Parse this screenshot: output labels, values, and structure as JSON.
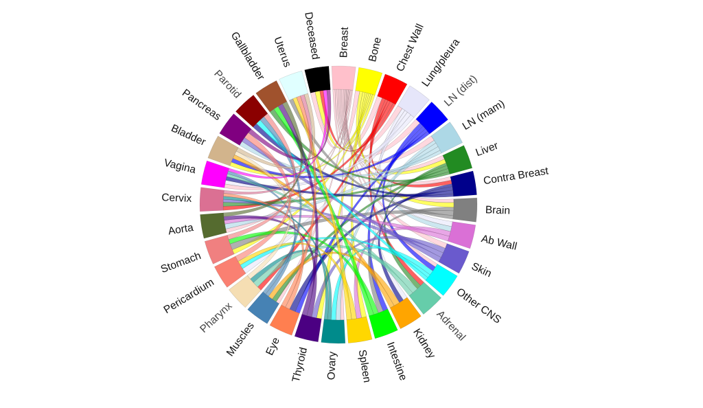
{
  "diagram": {
    "type": "chord",
    "segments": [
      {
        "label": "Breast",
        "color": "#ffc0cb"
      },
      {
        "label": "Bone",
        "color": "#ffff00"
      },
      {
        "label": "Chest Wall",
        "color": "#ff0000"
      },
      {
        "label": "Lung/pleura",
        "color": "#e6e6fa"
      },
      {
        "label": "LN (dist)",
        "color": "#0000ff",
        "style": "light"
      },
      {
        "label": "LN (mam)",
        "color": "#add8e6"
      },
      {
        "label": "Liver",
        "color": "#228b22"
      },
      {
        "label": "Contra Breast",
        "color": "#00008b"
      },
      {
        "label": "Brain",
        "color": "#808080"
      },
      {
        "label": "Ab Wall",
        "color": "#da70d6"
      },
      {
        "label": "Skin",
        "color": "#6a5acd"
      },
      {
        "label": "Other CNS",
        "color": "#00ffff"
      },
      {
        "label": "Adrenal",
        "color": "#66cdaa",
        "style": "light"
      },
      {
        "label": "Kidney",
        "color": "#ffa500"
      },
      {
        "label": "Intestine",
        "color": "#00ff00"
      },
      {
        "label": "Spleen",
        "color": "#ffd700"
      },
      {
        "label": "Ovary",
        "color": "#008b8b"
      },
      {
        "label": "Thyroid",
        "color": "#4b0082"
      },
      {
        "label": "Eye",
        "color": "#ff7f50"
      },
      {
        "label": "Muscles",
        "color": "#4682b4"
      },
      {
        "label": "Pharynx",
        "color": "#f5deb3",
        "style": "light"
      },
      {
        "label": "Pericardium",
        "color": "#fa8072"
      },
      {
        "label": "Stomach",
        "color": "#f08080"
      },
      {
        "label": "Aorta",
        "color": "#556b2f"
      },
      {
        "label": "Cervix",
        "color": "#db7093"
      },
      {
        "label": "Vagina",
        "color": "#ff00ff"
      },
      {
        "label": "Bladder",
        "color": "#d2b48c"
      },
      {
        "label": "Pancreas",
        "color": "#800080"
      },
      {
        "label": "Parotid",
        "color": "#8b0000",
        "style": "light"
      },
      {
        "label": "Gallbladder",
        "color": "#a0522d"
      },
      {
        "label": "Uterus",
        "color": "#e0ffff"
      },
      {
        "label": "Deceased",
        "color": "#000000"
      }
    ],
    "links": [
      [
        0,
        1,
        7
      ],
      [
        0,
        2,
        6
      ],
      [
        0,
        3,
        5
      ],
      [
        0,
        4,
        5
      ],
      [
        0,
        5,
        5
      ],
      [
        0,
        6,
        5
      ],
      [
        0,
        7,
        4
      ],
      [
        0,
        8,
        3
      ],
      [
        0,
        10,
        3
      ],
      [
        0,
        11,
        3
      ],
      [
        0,
        16,
        3
      ],
      [
        0,
        19,
        3
      ],
      [
        0,
        23,
        3
      ],
      [
        0,
        25,
        4
      ],
      [
        0,
        31,
        4
      ],
      [
        1,
        6,
        5
      ],
      [
        1,
        8,
        4
      ],
      [
        1,
        15,
        3
      ],
      [
        1,
        17,
        3
      ],
      [
        1,
        22,
        3
      ],
      [
        1,
        26,
        3
      ],
      [
        1,
        31,
        4
      ],
      [
        2,
        7,
        4
      ],
      [
        2,
        12,
        3
      ],
      [
        2,
        20,
        3
      ],
      [
        2,
        24,
        4
      ],
      [
        2,
        31,
        3
      ],
      [
        3,
        9,
        3
      ],
      [
        3,
        13,
        3
      ],
      [
        3,
        21,
        4
      ],
      [
        3,
        25,
        4
      ],
      [
        4,
        11,
        4
      ],
      [
        4,
        14,
        3
      ],
      [
        4,
        18,
        3
      ],
      [
        4,
        26,
        3
      ],
      [
        5,
        9,
        3
      ],
      [
        5,
        16,
        4
      ],
      [
        5,
        23,
        4
      ],
      [
        5,
        27,
        3
      ],
      [
        6,
        12,
        3
      ],
      [
        6,
        19,
        4
      ],
      [
        6,
        24,
        4
      ],
      [
        6,
        29,
        3
      ],
      [
        7,
        13,
        3
      ],
      [
        7,
        18,
        4
      ],
      [
        7,
        25,
        4
      ],
      [
        7,
        28,
        3
      ],
      [
        8,
        14,
        3
      ],
      [
        8,
        22,
        4
      ],
      [
        8,
        30,
        3
      ],
      [
        9,
        15,
        3
      ],
      [
        9,
        23,
        3
      ],
      [
        10,
        17,
        3
      ],
      [
        10,
        24,
        3
      ],
      [
        10,
        27,
        3
      ],
      [
        11,
        16,
        4
      ],
      [
        11,
        21,
        3
      ],
      [
        11,
        28,
        3
      ],
      [
        12,
        20,
        4
      ],
      [
        12,
        25,
        3
      ],
      [
        13,
        19,
        4
      ],
      [
        13,
        26,
        3
      ],
      [
        14,
        22,
        3
      ],
      [
        14,
        29,
        3
      ],
      [
        15,
        21,
        3
      ],
      [
        15,
        30,
        3
      ],
      [
        16,
        20,
        3
      ],
      [
        16,
        24,
        3
      ],
      [
        17,
        23,
        3
      ],
      [
        17,
        29,
        3
      ],
      [
        18,
        24,
        3
      ],
      [
        18,
        30,
        3
      ],
      [
        19,
        25,
        3
      ],
      [
        19,
        28,
        3
      ],
      [
        20,
        26,
        3
      ],
      [
        21,
        27,
        4
      ],
      [
        22,
        28,
        3
      ],
      [
        23,
        29,
        3
      ],
      [
        24,
        30,
        3
      ],
      [
        25,
        31,
        3
      ],
      [
        26,
        30,
        3
      ],
      [
        27,
        31,
        3
      ]
    ]
  }
}
